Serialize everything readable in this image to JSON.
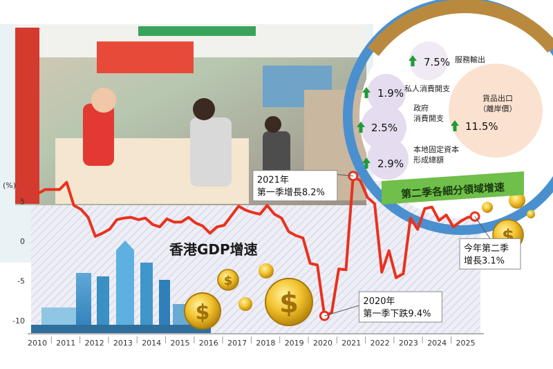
{
  "title": "香港GDP增速",
  "subtitle": "第二季各細分領域增速",
  "colors": {
    "line": "#e8321e",
    "ring_blue": "#4a90cf",
    "ring_gold": "#b98a3e",
    "arrow_green": "#1f9a3a",
    "bubble_purple": "#e6dcef",
    "bubble_peach": "#fbe1cf",
    "sub_green": "#6fbf4a"
  },
  "icons": [
    "dollar-coin-icon",
    "city-skyline-icon",
    "up-arrow-icon"
  ],
  "chart_data": [
    {
      "type": "line",
      "title": "香港GDP增速",
      "ylabel": "(%)",
      "ylim": [
        -12,
        9
      ],
      "y_ticks": [
        "5",
        "0",
        "-5",
        "-10"
      ],
      "x_ticks": [
        "2010",
        "2011",
        "2012",
        "2013",
        "2014",
        "2015",
        "2016",
        "2017",
        "2018",
        "2019",
        "2020",
        "2021",
        "2022",
        "2023",
        "2024",
        "2025"
      ],
      "grid": false,
      "series": [
        {
          "x": [
            2010.0,
            2010.25,
            2010.5,
            2010.75,
            2011.0,
            2011.25,
            2011.5,
            2011.75,
            2012.0,
            2012.25,
            2012.5,
            2012.75,
            2013.0,
            2013.25,
            2013.5,
            2013.75,
            2014.0,
            2014.25,
            2014.5,
            2014.75,
            2015.0,
            2015.25,
            2015.5,
            2015.75,
            2016.0,
            2016.25,
            2016.5,
            2016.75,
            2017.0,
            2017.25,
            2017.5,
            2017.75,
            2018.0,
            2018.25,
            2018.5,
            2018.75,
            2019.0,
            2019.25,
            2019.5,
            2019.75,
            2020.0,
            2020.25,
            2020.5,
            2020.75,
            2021.0,
            2021.25,
            2021.5,
            2021.75,
            2022.0,
            2022.25,
            2022.5,
            2022.75,
            2023.0,
            2023.25,
            2023.5,
            2023.75,
            2024.0,
            2024.25,
            2024.5,
            2024.75,
            2025.0,
            2025.25
          ],
          "y": [
            6.0,
            6.5,
            6.5,
            6.5,
            7.4,
            4.5,
            4.0,
            3.0,
            0.6,
            1.0,
            1.5,
            2.7,
            2.9,
            3.0,
            2.7,
            2.9,
            2.1,
            1.8,
            2.8,
            2.4,
            2.4,
            3.0,
            2.3,
            1.9,
            1.0,
            1.8,
            2.0,
            3.2,
            4.4,
            3.9,
            3.6,
            3.4,
            4.5,
            3.4,
            2.9,
            1.2,
            0.7,
            0.4,
            -2.8,
            -3.0,
            -9.4,
            -9.0,
            -3.5,
            -3.6,
            8.2,
            7.6,
            5.5,
            4.7,
            -3.9,
            -1.2,
            -4.6,
            -4.1,
            2.9,
            1.5,
            4.1,
            4.3,
            2.6,
            3.3,
            1.8,
            2.5,
            3.0,
            3.1
          ]
        }
      ],
      "annotations": [
        {
          "text": "2021年\n第一季增長8.2%",
          "x": 2021.0,
          "y": 8.2
        },
        {
          "text": "2020年\n第一季下跌9.4%",
          "x": 2020.0,
          "y": -9.4
        },
        {
          "text": "今年第二季\n增長3.1%",
          "x": 2025.25,
          "y": 3.1
        }
      ]
    },
    {
      "type": "table",
      "title": "第二季各細分領域增速",
      "items": [
        {
          "label": "服務輸出",
          "value": "7.5%"
        },
        {
          "label": "私人消費開支",
          "value": "1.9%"
        },
        {
          "label": "政府消費開支",
          "value": "2.5%"
        },
        {
          "label": "本地固定資本形成總額",
          "value": "2.9%"
        },
        {
          "label": "貨品出口（離岸價）",
          "value": "11.5%"
        }
      ]
    }
  ]
}
